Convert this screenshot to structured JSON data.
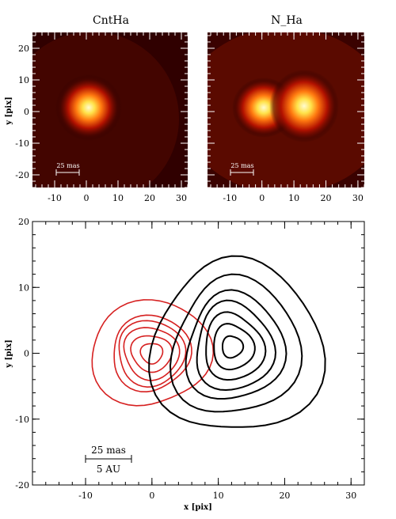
{
  "panels": {
    "left_title": "CntHa",
    "right_title": "N_Ha",
    "ylabel": "y [pix]",
    "scale_label": "25 mas"
  },
  "bottom": {
    "xlabel": "x [pix]",
    "ylabel": "y [pix]",
    "scale_top": "25 mas",
    "scale_bottom": "5 AU"
  },
  "chart_data": [
    {
      "type": "heatmap",
      "title": "CntHa",
      "xlabel": "",
      "ylabel": "y [pix]",
      "xlim": [
        -17,
        32
      ],
      "ylim": [
        -24,
        25
      ],
      "xticks": [
        -10,
        0,
        10,
        20,
        30
      ],
      "yticks": [
        -20,
        -10,
        0,
        10,
        20
      ],
      "sources": [
        {
          "x": 0,
          "y": 1,
          "peak": 1.0
        }
      ],
      "colormap": "hot"
    },
    {
      "type": "heatmap",
      "title": "N_Ha",
      "xlabel": "",
      "ylabel": "",
      "xlim": [
        -17,
        32
      ],
      "ylim": [
        -24,
        25
      ],
      "xticks": [
        -10,
        0,
        10,
        20,
        30
      ],
      "yticks": [
        -20,
        -10,
        0,
        10,
        20
      ],
      "sources": [
        {
          "x": 0,
          "y": 1,
          "peak": 0.95
        },
        {
          "x": 12,
          "y": 2,
          "peak": 1.0
        }
      ],
      "colormap": "hot"
    },
    {
      "type": "line",
      "title": "",
      "xlabel": "x [pix]",
      "ylabel": "y [pix]",
      "xlim": [
        -18,
        32
      ],
      "ylim": [
        -20,
        20
      ],
      "xticks": [
        -10,
        0,
        10,
        20,
        30
      ],
      "yticks": [
        -20,
        -10,
        0,
        10,
        20
      ],
      "series": [
        {
          "color": "#d62020",
          "center": [
            0,
            0
          ],
          "contours": [
            [
              1.6,
              1.6
            ],
            [
              3.0,
              2.8
            ],
            [
              4.2,
              3.9
            ],
            [
              5.2,
              4.8
            ],
            [
              6.0,
              5.6
            ],
            [
              9.0,
              8.0
            ]
          ]
        },
        {
          "color": "#000000",
          "center": [
            12,
            1
          ],
          "contours": [
            [
              1.5,
              1.7
            ],
            [
              3.0,
              3.5
            ],
            [
              4.5,
              5.0
            ],
            [
              6.0,
              6.5
            ],
            [
              7.5,
              8.0
            ],
            [
              9.5,
              10.5
            ],
            [
              12.5,
              13.5
            ]
          ]
        }
      ]
    }
  ]
}
